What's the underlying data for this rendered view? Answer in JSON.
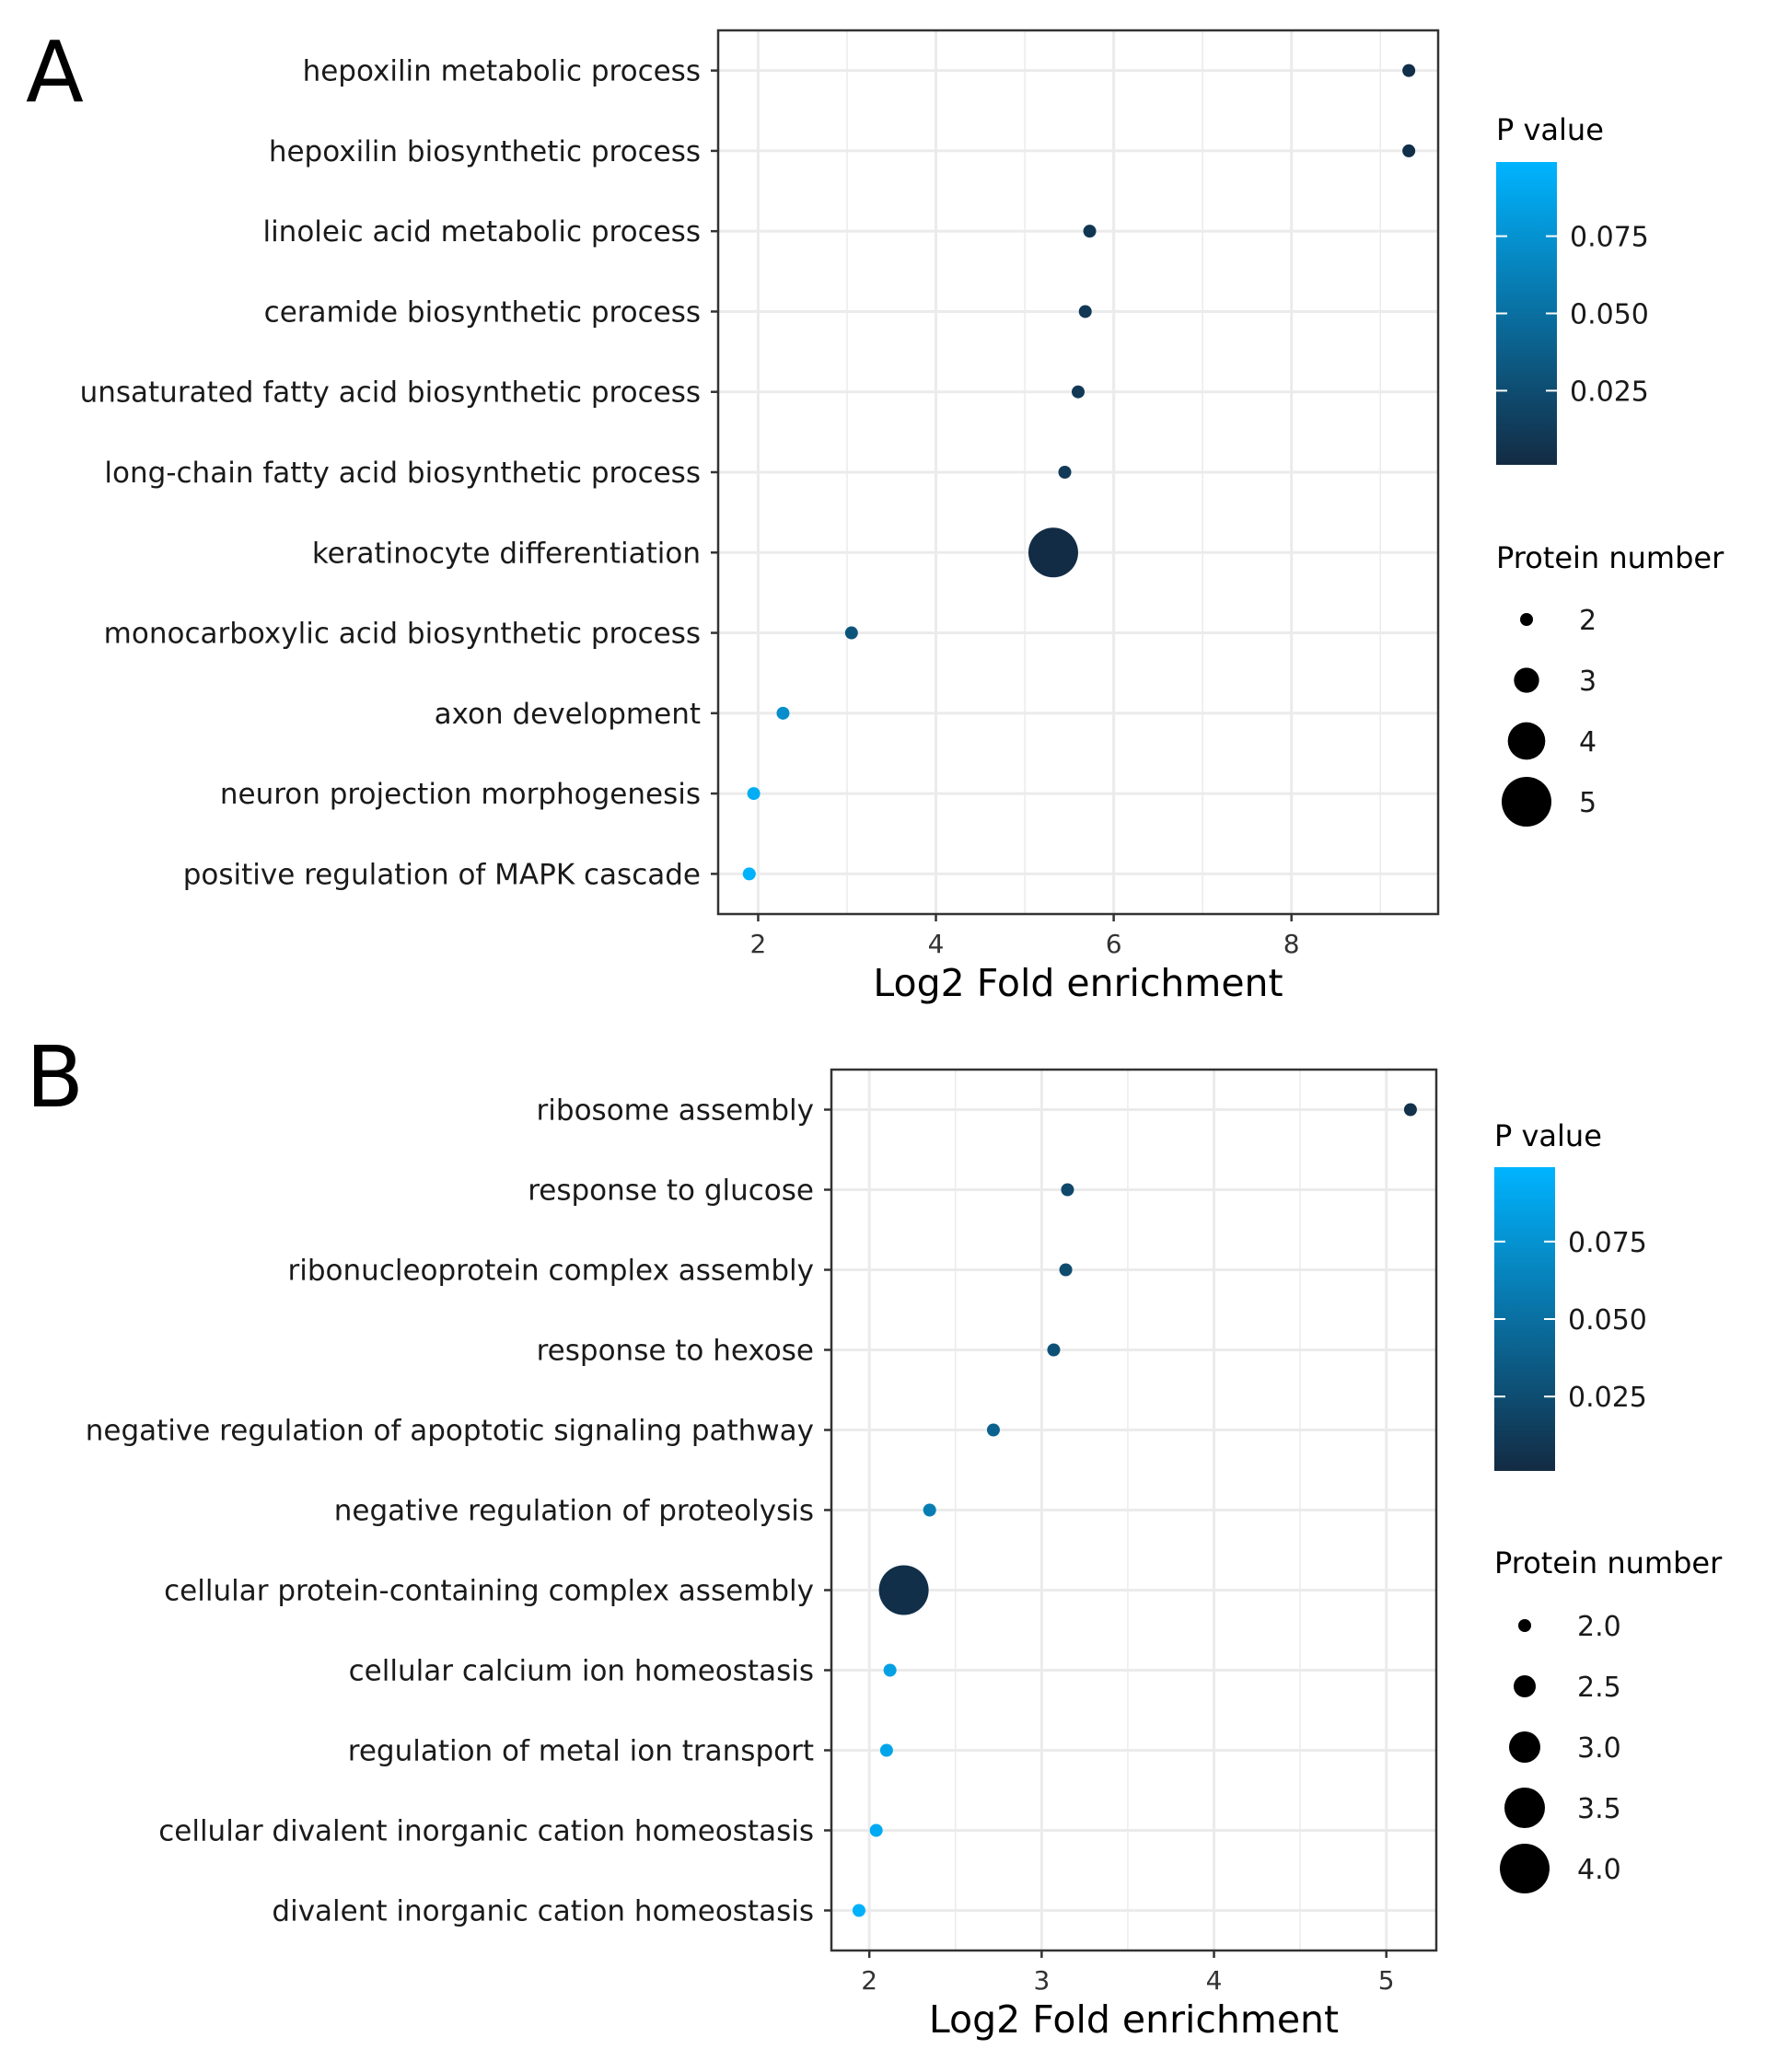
{
  "chart_data": [
    {
      "panel": "A",
      "type": "scatter",
      "xlabel": "Log2 Fold enrichment",
      "xlim": [
        1.55,
        9.65
      ],
      "xticks": [
        2,
        4,
        6,
        8
      ],
      "grid": true,
      "categories": [
        "hepoxilin metabolic process",
        "hepoxilin biosynthetic process",
        "linoleic acid metabolic process",
        "ceramide biosynthetic process",
        "unsaturated fatty acid biosynthetic process",
        "long-chain fatty acid biosynthetic process",
        "keratinocyte differentiation",
        "monocarboxylic acid biosynthetic process",
        "axon development",
        "neuron projection morphogenesis",
        "positive regulation of MAPK cascade"
      ],
      "x": [
        9.32,
        9.32,
        5.73,
        5.68,
        5.6,
        5.45,
        5.32,
        3.05,
        2.28,
        1.95,
        1.9
      ],
      "p_value": [
        0.004,
        0.004,
        0.009,
        0.01,
        0.011,
        0.012,
        0.002,
        0.03,
        0.072,
        0.094,
        0.097
      ],
      "protein_number": [
        2,
        2,
        2,
        2,
        2,
        2,
        5,
        2,
        2,
        2,
        2
      ],
      "legend": {
        "color_title": "P value",
        "color_range": [
          0.001,
          0.099
        ],
        "color_ticks": [
          "0.075",
          "0.050",
          "0.025"
        ],
        "size_title": "Protein number",
        "size_range": [
          2,
          5
        ],
        "size_labels": [
          "2",
          "3",
          "4",
          "5"
        ]
      }
    },
    {
      "panel": "B",
      "type": "scatter",
      "xlabel": "Log2 Fold enrichment",
      "xlim": [
        1.78,
        5.29
      ],
      "xticks": [
        2,
        3,
        4,
        5
      ],
      "grid": true,
      "categories": [
        "ribosome assembly",
        "response to glucose",
        "ribonucleoprotein complex assembly",
        "response to hexose",
        "negative regulation of apoptotic signaling pathway",
        "negative regulation of proteolysis",
        "cellular protein-containing complex assembly",
        "cellular calcium ion homeostasis",
        "regulation of metal ion transport",
        "cellular divalent inorganic cation homeostasis",
        "divalent inorganic cation homeostasis"
      ],
      "x": [
        5.14,
        3.15,
        3.14,
        3.07,
        2.72,
        2.35,
        2.2,
        2.12,
        2.1,
        2.04,
        1.94
      ],
      "p_value": [
        0.005,
        0.022,
        0.024,
        0.028,
        0.04,
        0.06,
        0.004,
        0.085,
        0.088,
        0.092,
        0.097
      ],
      "protein_number": [
        2,
        2,
        2,
        2,
        2,
        2,
        4,
        2,
        2,
        2,
        2
      ],
      "legend": {
        "color_title": "P value",
        "color_range": [
          0.001,
          0.099
        ],
        "color_ticks": [
          "0.075",
          "0.050",
          "0.025"
        ],
        "size_title": "Protein number",
        "size_range": [
          2,
          4
        ],
        "size_labels": [
          "2.0",
          "2.5",
          "3.0",
          "3.5",
          "4.0"
        ]
      }
    }
  ],
  "panels": [
    {
      "letter": "A"
    },
    {
      "letter": "B"
    }
  ],
  "colors": {
    "low": "#132B43",
    "high": "#00b4ff",
    "grid": "#ebebeb",
    "frame": "#333333"
  }
}
